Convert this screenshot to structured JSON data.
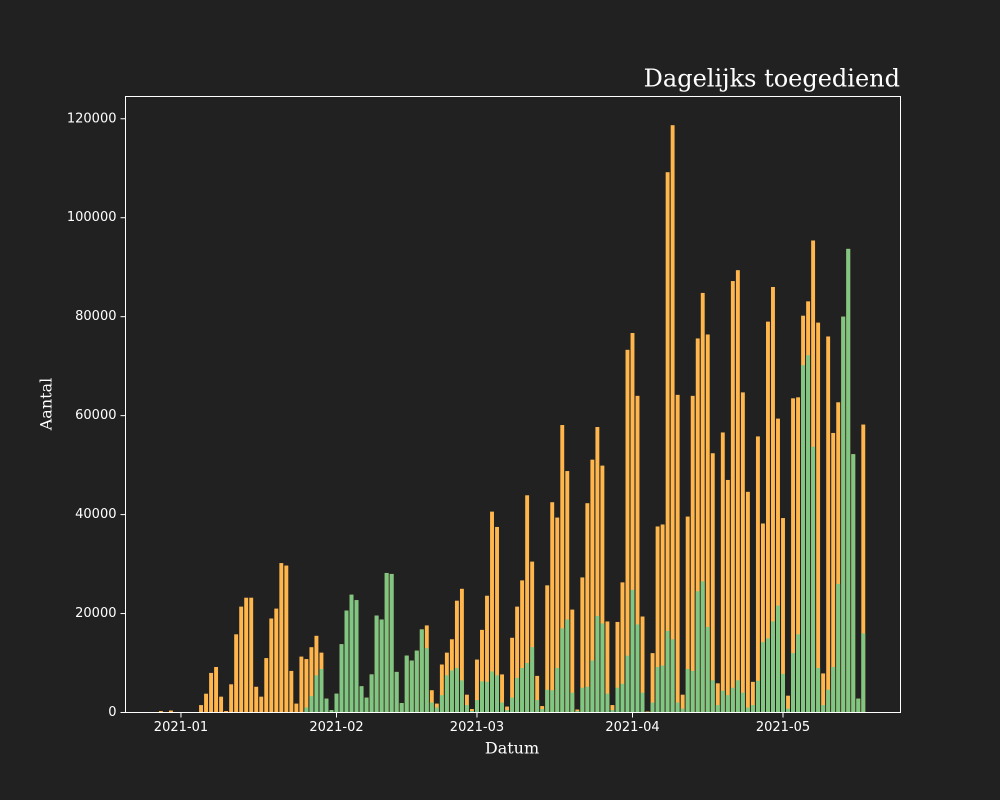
{
  "chart_data": {
    "type": "bar",
    "title": "Dagelijks toegediend",
    "xlabel": "Datum",
    "ylabel": "Aantal",
    "categories": [
      null,
      null,
      null,
      null,
      "2021-01",
      null,
      null,
      null,
      null,
      null,
      null,
      null,
      null,
      null,
      null,
      null,
      null,
      null,
      null,
      null,
      null,
      null,
      null,
      null,
      null,
      null,
      null,
      null,
      null,
      null,
      null,
      null,
      null,
      null,
      null,
      "2021-02",
      null,
      null,
      null,
      null,
      null,
      null,
      null,
      null,
      null,
      null,
      null,
      null,
      null,
      null,
      null,
      null,
      null,
      null,
      null,
      null,
      null,
      null,
      null,
      null,
      null,
      null,
      null,
      "2021-03",
      null,
      null,
      null,
      null,
      null,
      null,
      null,
      null,
      null,
      null,
      null,
      null,
      null,
      null,
      null,
      null,
      null,
      null,
      null,
      null,
      null,
      null,
      null,
      null,
      null,
      null,
      null,
      null,
      null,
      null,
      "2021-04",
      null,
      null,
      null,
      null,
      null,
      null,
      null,
      null,
      null,
      null,
      null,
      null,
      null,
      null,
      null,
      null,
      null,
      null,
      null,
      null,
      null,
      null,
      null,
      null,
      null,
      null,
      null,
      null,
      null,
      "2021-05",
      null,
      null,
      null,
      null,
      null,
      null,
      null,
      null,
      null,
      null,
      null,
      null,
      null,
      null,
      null,
      null
    ],
    "series": [
      {
        "color": "#ffb74d",
        "values": [
          300,
          0,
          400,
          0,
          0,
          0,
          0,
          0,
          1500,
          3800,
          8000,
          9200,
          3200,
          300,
          5700,
          15800,
          21400,
          23200,
          23200,
          5200,
          3200,
          11000,
          19000,
          21000,
          30200,
          29700,
          8400,
          1800,
          11300,
          10800,
          13200,
          15500,
          12100,
          2800,
          500,
          3800,
          13800,
          20600,
          23800,
          22700,
          5300,
          3000,
          7700,
          19600,
          18800,
          28200,
          28000,
          8200,
          1900,
          11500,
          10500,
          12500,
          16800,
          17600,
          4500,
          1800,
          9700,
          12100,
          14800,
          22600,
          25000,
          3600,
          700,
          10700,
          16700,
          23600,
          40600,
          37500,
          7700,
          1200,
          15100,
          21400,
          26700,
          43900,
          30500,
          7400,
          1300,
          25700,
          42500,
          39400,
          58100,
          48800,
          20800,
          600,
          27300,
          42300,
          51100,
          57700,
          49900,
          18400,
          1500,
          18300,
          26300,
          73300,
          76700,
          64000,
          19400,
          200,
          12000,
          37600,
          38000,
          109200,
          118700,
          64200,
          3600,
          39600,
          64000,
          75600,
          84800,
          76400,
          52400,
          5900,
          56600,
          47000,
          87200,
          89400,
          64700,
          44600,
          6200,
          55800,
          38200,
          79000,
          86000,
          59400,
          39300,
          3400,
          63500,
          63700,
          80200,
          83100,
          95400,
          78800,
          7900,
          76000,
          56500,
          62700,
          80000,
          93700,
          52200,
          2800,
          58200
        ]
      },
      {
        "color": "#81c784",
        "values": [
          0,
          0,
          0,
          0,
          0,
          0,
          0,
          0,
          0,
          0,
          0,
          0,
          0,
          0,
          0,
          0,
          0,
          0,
          0,
          0,
          0,
          0,
          0,
          0,
          0,
          0,
          0,
          0,
          0,
          1000,
          3300,
          7500,
          8800,
          2800,
          500,
          3800,
          13800,
          20600,
          23800,
          22700,
          5300,
          3000,
          7700,
          19600,
          18800,
          28200,
          28000,
          8200,
          1900,
          11500,
          10500,
          12500,
          16800,
          13000,
          2000,
          1000,
          3500,
          7500,
          8500,
          9000,
          6500,
          1500,
          300,
          2500,
          6300,
          6200,
          8300,
          7500,
          2000,
          500,
          3000,
          7000,
          9000,
          10000,
          13200,
          2500,
          700,
          4600,
          4500,
          9000,
          17000,
          18800,
          4000,
          300,
          5000,
          5200,
          10500,
          19500,
          18000,
          3800,
          500,
          5000,
          5800,
          11500,
          24800,
          17800,
          4000,
          100,
          2000,
          9200,
          9500,
          16500,
          14800,
          2000,
          800,
          8800,
          8400,
          24500,
          26500,
          17300,
          6500,
          1500,
          4400,
          3500,
          5000,
          6500,
          4000,
          1000,
          1500,
          6400,
          14200,
          15000,
          18400,
          21600,
          7800,
          800,
          12000,
          15800,
          70200,
          72200,
          53700,
          9000,
          1500,
          4600,
          9200,
          26000,
          80000,
          93700,
          52200,
          2800,
          16000
        ]
      }
    ],
    "ylim": [
      0,
      124500
    ],
    "yticks": [
      0,
      20000,
      40000,
      60000,
      80000,
      100000,
      120000
    ]
  }
}
